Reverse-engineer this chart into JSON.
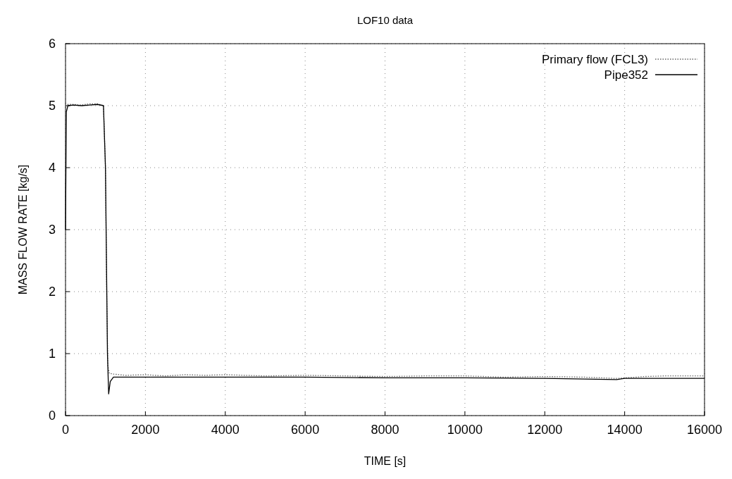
{
  "chart_data": {
    "type": "line",
    "title": "LOF10 data",
    "xlabel": "TIME [s]",
    "ylabel": "MASS FLOW RATE [kg/s]",
    "xlim": [
      0,
      16000
    ],
    "ylim": [
      0,
      6
    ],
    "xticks": [
      0,
      2000,
      4000,
      6000,
      8000,
      10000,
      12000,
      14000,
      16000
    ],
    "yticks": [
      0,
      1,
      2,
      3,
      4,
      5,
      6
    ],
    "grid": true,
    "legend": "top right",
    "series": [
      {
        "name": "Primary flow (FCL3)",
        "color": "#666666",
        "line_style": "dotted",
        "x": [
          0,
          30,
          200,
          400,
          600,
          800,
          950,
          1000,
          1030,
          1060,
          1100,
          1200,
          1500,
          2000,
          2500,
          3000,
          3500,
          4000,
          5000,
          6000,
          7000,
          8000,
          9000,
          10000,
          11000,
          12000,
          13000,
          13800,
          14500,
          15000,
          16000
        ],
        "values": [
          5.0,
          5.02,
          5.02,
          5.01,
          5.03,
          5.03,
          5.0,
          4.0,
          2.0,
          0.8,
          0.68,
          0.67,
          0.65,
          0.66,
          0.64,
          0.66,
          0.65,
          0.66,
          0.64,
          0.65,
          0.64,
          0.63,
          0.64,
          0.64,
          0.62,
          0.63,
          0.62,
          0.6,
          0.63,
          0.64,
          0.64
        ]
      },
      {
        "name": "Pipe352",
        "color": "#000000",
        "line_style": "solid",
        "x": [
          0,
          20,
          60,
          200,
          400,
          600,
          800,
          950,
          1000,
          1050,
          1080,
          1120,
          1200,
          2000,
          4000,
          6000,
          8000,
          10000,
          12000,
          13800,
          14000,
          16000
        ],
        "values": [
          3.0,
          4.9,
          5.0,
          5.01,
          5.0,
          5.01,
          5.02,
          5.0,
          4.0,
          1.0,
          0.35,
          0.55,
          0.62,
          0.62,
          0.62,
          0.62,
          0.61,
          0.61,
          0.6,
          0.58,
          0.6,
          0.6
        ]
      }
    ]
  }
}
